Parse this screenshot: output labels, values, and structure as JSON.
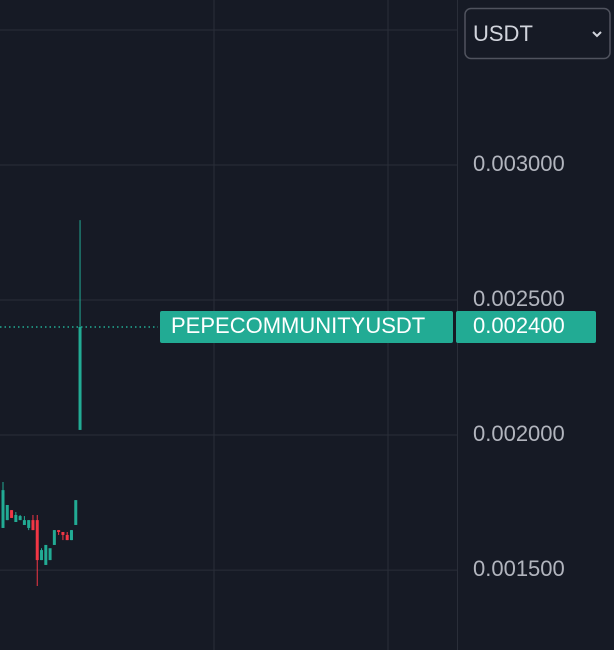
{
  "chart_data": {
    "type": "candlestick",
    "quote_selector": "USDT",
    "symbol": "PEPECOMMUNITYUSDT",
    "last_price": {
      "value": 0.0024,
      "label": "0.002400"
    },
    "categories": [
      null,
      null,
      null,
      null,
      null,
      null,
      null,
      null,
      null,
      null,
      null,
      null,
      null,
      null,
      null,
      null,
      null,
      null,
      null
    ],
    "open": [
      0.001656,
      0.001685,
      0.001722,
      0.001678,
      0.001685,
      0.001667,
      0.001656,
      0.001685,
      0.001685,
      0.001537,
      0.001519,
      0.001537,
      0.001593,
      0.001648,
      0.001641,
      0.00163,
      0.001611,
      0.001667,
      0.002019
    ],
    "high": [
      0.001826,
      0.001741,
      0.001722,
      0.001715,
      0.001704,
      0.0017,
      0.001685,
      0.001704,
      0.001704,
      0.001581,
      0.001593,
      0.001574,
      0.001648,
      0.001648,
      0.001641,
      0.001641,
      0.001648,
      0.001759,
      0.002796
    ],
    "low": [
      0.001656,
      0.001685,
      0.001693,
      0.001678,
      0.001685,
      0.001667,
      0.001648,
      0.001648,
      0.001441,
      0.001537,
      0.001519,
      0.001537,
      0.001593,
      0.00163,
      0.001611,
      0.001611,
      0.001611,
      0.001667,
      0.002019
    ],
    "close": [
      0.001796,
      0.001741,
      0.001693,
      0.001704,
      0.0017,
      0.001685,
      0.001685,
      0.001648,
      0.001537,
      0.001574,
      0.001593,
      0.001581,
      0.001648,
      0.001641,
      0.00163,
      0.001611,
      0.001648,
      0.001759,
      0.0024
    ],
    "up_color": "#22ab94",
    "down_color": "#f23645",
    "ylim": [
      0.001204,
      0.003611
    ],
    "yticks": [
      {
        "value": 0.0015,
        "label": "0.001500"
      },
      {
        "value": 0.002,
        "label": "0.002000"
      },
      {
        "value": 0.0025,
        "label": "0.002500"
      },
      {
        "value": 0.003,
        "label": "0.003000"
      }
    ],
    "grid": true
  }
}
